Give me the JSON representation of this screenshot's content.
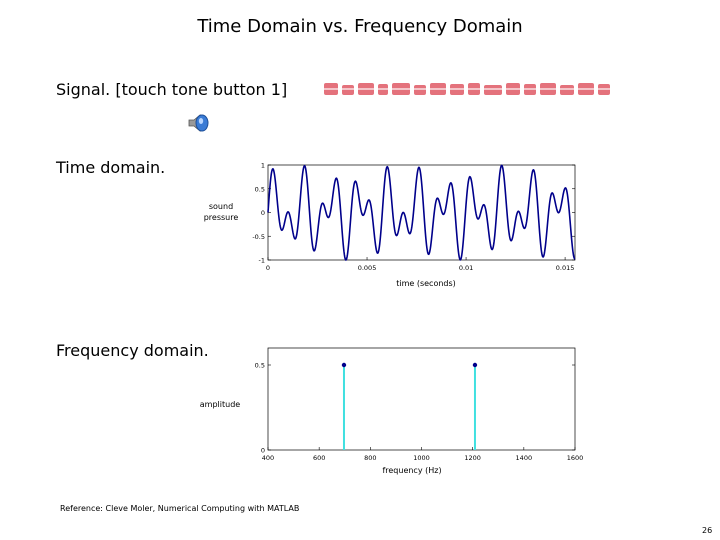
{
  "slide": {
    "title": "Time Domain vs. Frequency Domain",
    "signal_label": "Signal. [touch tone button 1]",
    "time_label": "Time domain.",
    "freq_label": "Frequency domain.",
    "reference": "Reference: Cleve Moler, Numerical Computing with MATLAB",
    "page_number": "26",
    "icons": {
      "speaker": "speaker-icon",
      "banner": "watermark-banner"
    }
  },
  "chart_data": [
    {
      "type": "line",
      "xlabel": "time (seconds)",
      "ylabel_lines": [
        "sound",
        "pressure"
      ],
      "xlim": [
        0,
        0.0155
      ],
      "ylim": [
        -1,
        1
      ],
      "xticks": [
        0,
        0.005,
        0.01,
        0.015
      ],
      "xtick_labels": [
        "0",
        "0.005",
        "0.01",
        "0.015"
      ],
      "yticks": [
        1,
        0.5,
        0,
        -0.5,
        -1
      ],
      "ytick_labels": [
        "1",
        "0.5",
        "0",
        "-0.5",
        "-1"
      ],
      "series": [
        {
          "function": "0.5*sin(2*pi*697*t) + 0.5*sin(2*pi*1209*t)",
          "color": "#00008b"
        }
      ]
    },
    {
      "type": "stem",
      "xlabel": "frequency (Hz)",
      "ylabel": "amplitude",
      "xlim": [
        400,
        1600
      ],
      "ylim": [
        0,
        0.6
      ],
      "xticks": [
        400,
        600,
        800,
        1000,
        1200,
        1400,
        1600
      ],
      "xtick_labels": [
        "400",
        "600",
        "800",
        "1000",
        "1200",
        "1400",
        "1600"
      ],
      "yticks": [
        0,
        0.5
      ],
      "ytick_labels": [
        "0",
        "0.5"
      ],
      "x": [
        697,
        1209
      ],
      "values": [
        0.5,
        0.5
      ],
      "stem_color": "#40e0e0",
      "marker_color": "#00008b"
    }
  ]
}
